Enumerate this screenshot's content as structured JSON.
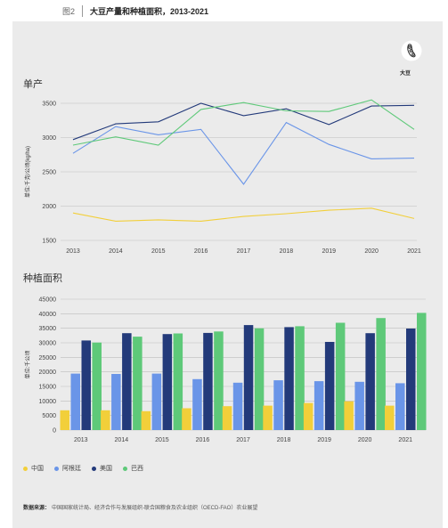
{
  "figure": {
    "number": "图2",
    "title": "大豆产量和种植面积，2013-2021"
  },
  "badge": {
    "label": "大豆",
    "icon": "soybean-icon"
  },
  "colors": {
    "china": "#f2cf3a",
    "argentina": "#6a95e8",
    "usa": "#233a7a",
    "brazil": "#5ec979"
  },
  "legend": [
    "中国",
    "阿根廷",
    "美国",
    "巴西"
  ],
  "source": {
    "label": "数据来源：",
    "text": "中国国家统计局、经济合作与发展组织-联合国粮食及农业组织（OECD-FAO）农业展望"
  },
  "chart_data": [
    {
      "type": "line",
      "title": "单产",
      "ylabel": "单位:千克/公顷(kg/ha)",
      "x": [
        "2013",
        "2014",
        "2015",
        "2016",
        "2017",
        "2018",
        "2019",
        "2020",
        "2021"
      ],
      "ylim": [
        1500,
        3500
      ],
      "yticks": [
        1500,
        2000,
        2500,
        3000,
        3500
      ],
      "grid": true,
      "series": [
        {
          "name": "中国",
          "color": "#f2cf3a",
          "values": [
            1900,
            1780,
            1800,
            1780,
            1850,
            1890,
            1940,
            1970,
            1820
          ]
        },
        {
          "name": "阿根廷",
          "color": "#6a95e8",
          "values": [
            2770,
            3160,
            3040,
            3120,
            2320,
            3220,
            2900,
            2690,
            2700
          ]
        },
        {
          "name": "美国",
          "color": "#233a7a",
          "values": [
            2970,
            3200,
            3230,
            3500,
            3320,
            3420,
            3190,
            3460,
            3470
          ]
        },
        {
          "name": "巴西",
          "color": "#5ec979",
          "values": [
            2890,
            3010,
            2890,
            3410,
            3510,
            3390,
            3380,
            3550,
            3120
          ]
        }
      ]
    },
    {
      "type": "bar",
      "title": "种植面积",
      "ylabel": "单位:千公顷",
      "categories": [
        "2013",
        "2014",
        "2015",
        "2016",
        "2017",
        "2018",
        "2019",
        "2020",
        "2021"
      ],
      "ylim": [
        0,
        45000
      ],
      "yticks": [
        0,
        5000,
        10000,
        15000,
        20000,
        25000,
        30000,
        35000,
        40000,
        45000
      ],
      "grid": true,
      "series": [
        {
          "name": "中国",
          "color": "#f2cf3a",
          "values": [
            6800,
            6800,
            6500,
            7500,
            8200,
            8400,
            9300,
            9900,
            8400
          ]
        },
        {
          "name": "阿根廷",
          "color": "#6a95e8",
          "values": [
            19400,
            19300,
            19400,
            17500,
            16300,
            17100,
            16800,
            16600,
            16100
          ]
        },
        {
          "name": "美国",
          "color": "#233a7a",
          "values": [
            30800,
            33300,
            33000,
            33400,
            36100,
            35400,
            30300,
            33300,
            34900
          ]
        },
        {
          "name": "巴西",
          "color": "#5ec979",
          "values": [
            30100,
            32100,
            33200,
            33900,
            35000,
            35700,
            36900,
            38500,
            40300
          ]
        }
      ]
    }
  ]
}
